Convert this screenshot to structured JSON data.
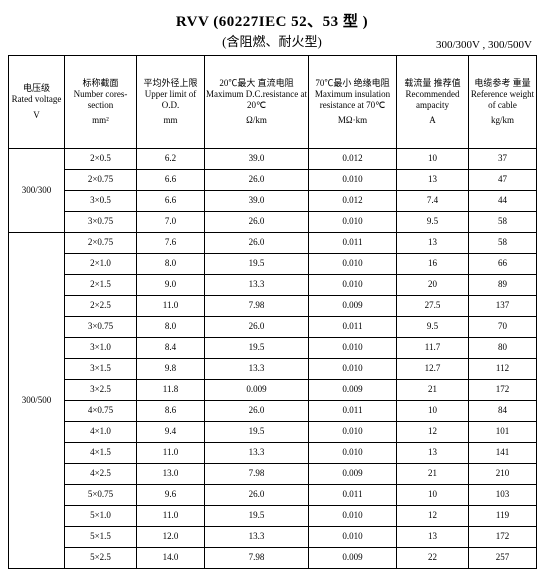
{
  "title": "RVV (60227IEC 52、53 型 )",
  "subtitle": "(含阻燃、耐火型)",
  "right_label": "300/300V , 300/500V",
  "headers": [
    {
      "cn": "电压级",
      "en": "Rated voltage",
      "unit": "V"
    },
    {
      "cn": "标称截面",
      "en": "Number cores-section",
      "unit": "mm²"
    },
    {
      "cn": "平均外径上限",
      "en": "Upper limit of O.D.",
      "unit": "mm"
    },
    {
      "cn": "20℃最大 直流电阻",
      "en": "Maximum D.C.resistance at 20℃",
      "unit": "Ω/km"
    },
    {
      "cn": "70℃最小 绝缘电阻",
      "en": "Maximum insulation resistance at 70℃",
      "unit": "MΩ·km"
    },
    {
      "cn": "载流量 推荐值",
      "en": "Recommended ampacity",
      "unit": "A"
    },
    {
      "cn": "电缆参考 重量",
      "en": "Reference weight of cable",
      "unit": "kg/km"
    }
  ],
  "groups": [
    {
      "voltage": "300/300",
      "rows": [
        {
          "sec": "2×0.5",
          "od": "6.2",
          "dcr": "39.0",
          "ins": "0.012",
          "amp": "10",
          "wt": "37"
        },
        {
          "sec": "2×0.75",
          "od": "6.6",
          "dcr": "26.0",
          "ins": "0.010",
          "amp": "13",
          "wt": "47"
        },
        {
          "sec": "3×0.5",
          "od": "6.6",
          "dcr": "39.0",
          "ins": "0.012",
          "amp": "7.4",
          "wt": "44"
        },
        {
          "sec": "3×0.75",
          "od": "7.0",
          "dcr": "26.0",
          "ins": "0.010",
          "amp": "9.5",
          "wt": "58"
        }
      ]
    },
    {
      "voltage": "300/500",
      "rows": [
        {
          "sec": "2×0.75",
          "od": "7.6",
          "dcr": "26.0",
          "ins": "0.011",
          "amp": "13",
          "wt": "58"
        },
        {
          "sec": "2×1.0",
          "od": "8.0",
          "dcr": "19.5",
          "ins": "0.010",
          "amp": "16",
          "wt": "66"
        },
        {
          "sec": "2×1.5",
          "od": "9.0",
          "dcr": "13.3",
          "ins": "0.010",
          "amp": "20",
          "wt": "89"
        },
        {
          "sec": "2×2.5",
          "od": "11.0",
          "dcr": "7.98",
          "ins": "0.009",
          "amp": "27.5",
          "wt": "137"
        },
        {
          "sec": "3×0.75",
          "od": "8.0",
          "dcr": "26.0",
          "ins": "0.011",
          "amp": "9.5",
          "wt": "70"
        },
        {
          "sec": "3×1.0",
          "od": "8.4",
          "dcr": "19.5",
          "ins": "0.010",
          "amp": "11.7",
          "wt": "80"
        },
        {
          "sec": "3×1.5",
          "od": "9.8",
          "dcr": "13.3",
          "ins": "0.010",
          "amp": "12.7",
          "wt": "112"
        },
        {
          "sec": "3×2.5",
          "od": "11.8",
          "dcr": "0.009",
          "ins": "0.009",
          "amp": "21",
          "wt": "172"
        },
        {
          "sec": "4×0.75",
          "od": "8.6",
          "dcr": "26.0",
          "ins": "0.011",
          "amp": "10",
          "wt": "84"
        },
        {
          "sec": "4×1.0",
          "od": "9.4",
          "dcr": "19.5",
          "ins": "0.010",
          "amp": "12",
          "wt": "101"
        },
        {
          "sec": "4×1.5",
          "od": "11.0",
          "dcr": "13.3",
          "ins": "0.010",
          "amp": "13",
          "wt": "141"
        },
        {
          "sec": "4×2.5",
          "od": "13.0",
          "dcr": "7.98",
          "ins": "0.009",
          "amp": "21",
          "wt": "210"
        },
        {
          "sec": "5×0.75",
          "od": "9.6",
          "dcr": "26.0",
          "ins": "0.011",
          "amp": "10",
          "wt": "103"
        },
        {
          "sec": "5×1.0",
          "od": "11.0",
          "dcr": "19.5",
          "ins": "0.010",
          "amp": "12",
          "wt": "119"
        },
        {
          "sec": "5×1.5",
          "od": "12.0",
          "dcr": "13.3",
          "ins": "0.010",
          "amp": "13",
          "wt": "172"
        },
        {
          "sec": "5×2.5",
          "od": "14.0",
          "dcr": "7.98",
          "ins": "0.009",
          "amp": "22",
          "wt": "257"
        }
      ]
    }
  ]
}
